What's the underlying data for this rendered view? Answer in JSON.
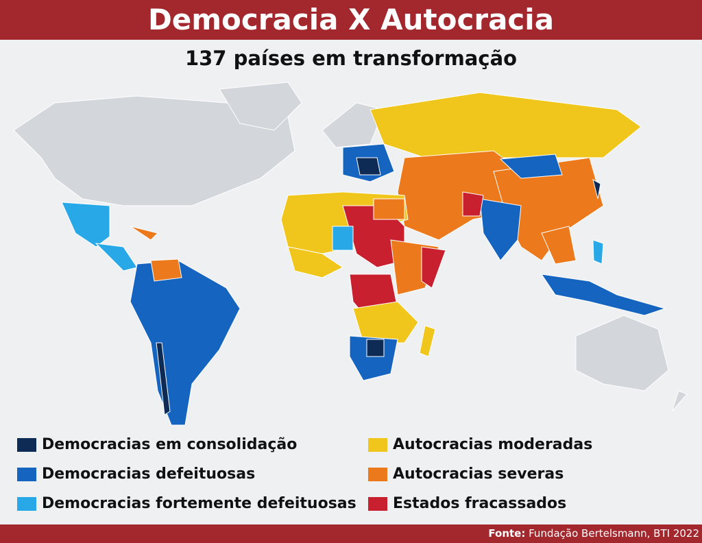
{
  "header": {
    "title": "Democracia X Autocracia",
    "subtitle": "137 países em transformação"
  },
  "legend": [
    {
      "label": "Democracias em consolidação",
      "color": "#0d2b55"
    },
    {
      "label": "Democracias defeituosas",
      "color": "#1565c0"
    },
    {
      "label": "Democracias fortemente defeituosas",
      "color": "#29a8e8"
    },
    {
      "label": "Autocracias moderadas",
      "color": "#f0c51c"
    },
    {
      "label": "Autocracias severas",
      "color": "#ec7a1c"
    },
    {
      "label": "Estados fracassados",
      "color": "#c8202e"
    }
  ],
  "footer": {
    "source_label": "Fonte:",
    "source": "Fundação Bertelsmann, BTI 2022"
  }
}
